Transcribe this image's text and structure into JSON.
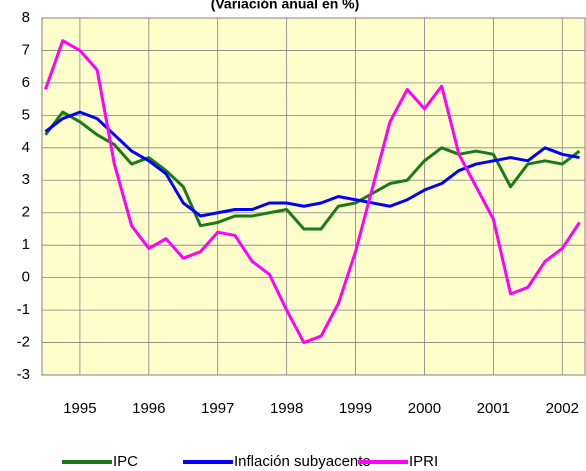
{
  "chart_data": {
    "type": "line",
    "title": "(Variación anual en %)",
    "x": [
      1995.0,
      1995.25,
      1995.5,
      1995.75,
      1996.0,
      1996.25,
      1996.5,
      1996.75,
      1997.0,
      1997.25,
      1997.5,
      1997.75,
      1998.0,
      1998.25,
      1998.5,
      1998.75,
      1999.0,
      1999.25,
      1999.5,
      1999.75,
      2000.0,
      2000.25,
      2000.5,
      2000.75,
      2001.0,
      2001.25,
      2001.5,
      2001.75,
      2002.0,
      2002.25,
      2002.5,
      2002.75
    ],
    "series": [
      {
        "name": "IPC",
        "color": "#1a7a1a",
        "values": [
          4.4,
          5.1,
          4.8,
          4.4,
          4.1,
          3.5,
          3.7,
          3.3,
          2.8,
          1.6,
          1.7,
          1.9,
          1.9,
          2.0,
          2.1,
          1.5,
          1.5,
          2.2,
          2.3,
          2.6,
          2.9,
          3.0,
          3.6,
          4.0,
          3.8,
          3.9,
          3.8,
          2.8,
          3.5,
          3.6,
          3.5,
          3.9
        ]
      },
      {
        "name": "Inflación subyacente",
        "color": "#0000ff",
        "values": [
          4.5,
          4.9,
          5.1,
          4.9,
          4.4,
          3.9,
          3.6,
          3.2,
          2.3,
          1.9,
          2.0,
          2.1,
          2.1,
          2.3,
          2.3,
          2.2,
          2.3,
          2.5,
          2.4,
          2.3,
          2.2,
          2.4,
          2.7,
          2.9,
          3.3,
          3.5,
          3.6,
          3.7,
          3.6,
          4.0,
          3.8,
          3.7
        ]
      },
      {
        "name": "IPRI",
        "color": "#ff00ff",
        "values": [
          5.8,
          7.3,
          7.0,
          6.4,
          3.5,
          1.6,
          0.9,
          1.2,
          0.6,
          0.8,
          1.4,
          1.3,
          0.5,
          0.1,
          -1.0,
          -2.0,
          -1.8,
          -0.8,
          0.8,
          2.8,
          4.8,
          5.8,
          5.2,
          5.9,
          3.8,
          2.8,
          1.8,
          -0.5,
          -0.3,
          0.5,
          0.9,
          1.7
        ]
      }
    ],
    "xlim": [
      1994.95,
      2002.83
    ],
    "xticks": [
      {
        "value": 1995.5,
        "label": "1995"
      },
      {
        "value": 1996.5,
        "label": "1996"
      },
      {
        "value": 1997.5,
        "label": "1997"
      },
      {
        "value": 1998.5,
        "label": "1998"
      },
      {
        "value": 1999.5,
        "label": "1999"
      },
      {
        "value": 2000.5,
        "label": "2000"
      },
      {
        "value": 2001.5,
        "label": "2001"
      },
      {
        "value": 2002.5,
        "label": "2002"
      }
    ],
    "ylim": [
      -3,
      8
    ],
    "yticks": [
      -3,
      -2,
      -1,
      0,
      1,
      2,
      3,
      4,
      5,
      6,
      7,
      8
    ],
    "grid": true,
    "legend": "bottom"
  }
}
